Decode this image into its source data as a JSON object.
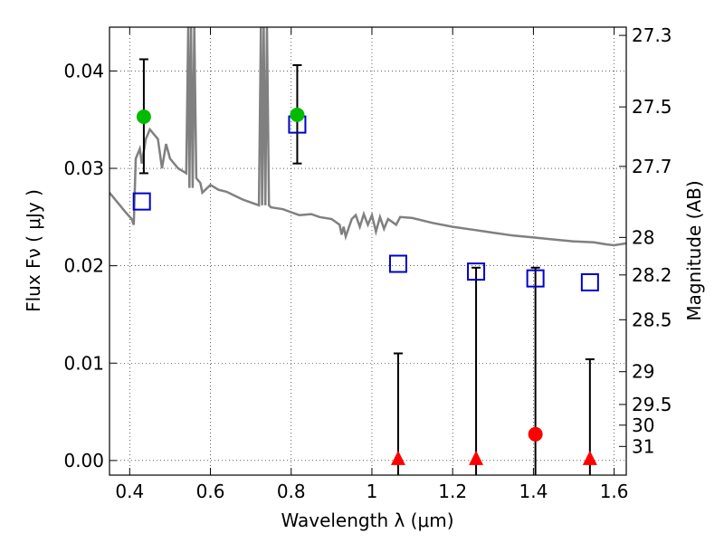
{
  "chart_data": {
    "type": "scatter",
    "xlabel": "Wavelength  λ (μm)",
    "ylabel": "Flux  Fν  ( μJy )",
    "y2label": "Magnitude (AB)",
    "xlim": [
      0.35,
      1.63
    ],
    "ylim": [
      -0.0015,
      0.0445
    ],
    "grid": true,
    "x_ticks": [
      {
        "value": 0.4,
        "label": "0.4"
      },
      {
        "value": 0.6,
        "label": "0.6"
      },
      {
        "value": 0.8,
        "label": "0.8"
      },
      {
        "value": 1.0,
        "label": "1"
      },
      {
        "value": 1.2,
        "label": "1.2"
      },
      {
        "value": 1.4,
        "label": "1.4"
      },
      {
        "value": 1.6,
        "label": "1.6"
      }
    ],
    "y_ticks": [
      {
        "value": 0.0,
        "label": "0.00"
      },
      {
        "value": 0.01,
        "label": "0.01"
      },
      {
        "value": 0.02,
        "label": "0.02"
      },
      {
        "value": 0.03,
        "label": "0.03"
      },
      {
        "value": 0.04,
        "label": "0.04"
      }
    ],
    "y2_ticks": [
      {
        "mag": 27.3,
        "label": "27.3"
      },
      {
        "mag": 27.5,
        "label": "27.5"
      },
      {
        "mag": 27.7,
        "label": "27.7"
      },
      {
        "mag": 28.0,
        "label": "28"
      },
      {
        "mag": 28.2,
        "label": "28.2"
      },
      {
        "mag": 28.5,
        "label": "28.5"
      },
      {
        "mag": 29.0,
        "label": "29"
      },
      {
        "mag": 29.5,
        "label": "29.5"
      },
      {
        "mag": 30.0,
        "label": "30"
      },
      {
        "mag": 31.0,
        "label": "31"
      }
    ],
    "colors": {
      "sed": "#808080",
      "model": "#0000cc",
      "detection": "#00bb00",
      "upper_limit": "#ff0000",
      "errorbar": "#000000"
    },
    "sed_model": [
      [
        0.35,
        0.0275
      ],
      [
        0.37,
        0.0265
      ],
      [
        0.39,
        0.0255
      ],
      [
        0.405,
        0.0248
      ],
      [
        0.41,
        0.0242
      ],
      [
        0.415,
        0.031
      ],
      [
        0.425,
        0.032
      ],
      [
        0.43,
        0.0305
      ],
      [
        0.44,
        0.033
      ],
      [
        0.45,
        0.034
      ],
      [
        0.46,
        0.0335
      ],
      [
        0.47,
        0.033
      ],
      [
        0.48,
        0.03
      ],
      [
        0.49,
        0.0325
      ],
      [
        0.5,
        0.031
      ],
      [
        0.52,
        0.03
      ],
      [
        0.54,
        0.0295
      ],
      [
        0.545,
        0.0445
      ],
      [
        0.548,
        0.028
      ],
      [
        0.552,
        0.0445
      ],
      [
        0.556,
        0.028
      ],
      [
        0.56,
        0.0445
      ],
      [
        0.565,
        0.029
      ],
      [
        0.575,
        0.0285
      ],
      [
        0.58,
        0.0275
      ],
      [
        0.6,
        0.0283
      ],
      [
        0.62,
        0.0278
      ],
      [
        0.64,
        0.0276
      ],
      [
        0.66,
        0.0272
      ],
      [
        0.68,
        0.0268
      ],
      [
        0.7,
        0.0265
      ],
      [
        0.72,
        0.0262
      ],
      [
        0.725,
        0.0445
      ],
      [
        0.728,
        0.0262
      ],
      [
        0.732,
        0.0445
      ],
      [
        0.736,
        0.0262
      ],
      [
        0.74,
        0.0445
      ],
      [
        0.745,
        0.0262
      ],
      [
        0.75,
        0.026
      ],
      [
        0.78,
        0.0258
      ],
      [
        0.8,
        0.0255
      ],
      [
        0.82,
        0.0252
      ],
      [
        0.85,
        0.0253
      ],
      [
        0.87,
        0.025
      ],
      [
        0.9,
        0.0248
      ],
      [
        0.92,
        0.0242
      ],
      [
        0.925,
        0.0232
      ],
      [
        0.93,
        0.024
      ],
      [
        0.935,
        0.023
      ],
      [
        0.95,
        0.0248
      ],
      [
        0.96,
        0.0252
      ],
      [
        0.97,
        0.024
      ],
      [
        0.98,
        0.0253
      ],
      [
        0.99,
        0.0242
      ],
      [
        1.0,
        0.0252
      ],
      [
        1.01,
        0.0235
      ],
      [
        1.02,
        0.025
      ],
      [
        1.03,
        0.0238
      ],
      [
        1.04,
        0.0248
      ],
      [
        1.05,
        0.0245
      ],
      [
        1.06,
        0.0242
      ],
      [
        1.07,
        0.025
      ],
      [
        1.1,
        0.0249
      ],
      [
        1.15,
        0.0244
      ],
      [
        1.2,
        0.024
      ],
      [
        1.25,
        0.0237
      ],
      [
        1.3,
        0.0234
      ],
      [
        1.35,
        0.0231
      ],
      [
        1.4,
        0.0229
      ],
      [
        1.45,
        0.0227
      ],
      [
        1.5,
        0.0225
      ],
      [
        1.55,
        0.0224
      ],
      [
        1.58,
        0.0222
      ],
      [
        1.6,
        0.0221
      ],
      [
        1.63,
        0.0223
      ]
    ],
    "model_photometry": [
      {
        "x": 0.43,
        "y": 0.0266
      },
      {
        "x": 0.815,
        "y": 0.0345
      },
      {
        "x": 1.065,
        "y": 0.0202
      },
      {
        "x": 1.258,
        "y": 0.0194
      },
      {
        "x": 1.405,
        "y": 0.0187
      },
      {
        "x": 1.54,
        "y": 0.0183
      }
    ],
    "detections": [
      {
        "x": 0.435,
        "y": 0.0353,
        "err_low": 0.0295,
        "err_high": 0.0412
      },
      {
        "x": 0.815,
        "y": 0.0355,
        "err_low": 0.0305,
        "err_high": 0.0406
      }
    ],
    "upper_limits": [
      {
        "x": 1.065,
        "y": 0.0,
        "marker": "triangle",
        "err_high": 0.011
      },
      {
        "x": 1.258,
        "y": 0.0,
        "marker": "triangle",
        "err_high": 0.0198
      },
      {
        "x": 1.405,
        "y": 0.0027,
        "marker": "circle",
        "err_high": 0.0198
      },
      {
        "x": 1.54,
        "y": 0.0,
        "marker": "triangle",
        "err_high": 0.0104
      }
    ]
  }
}
